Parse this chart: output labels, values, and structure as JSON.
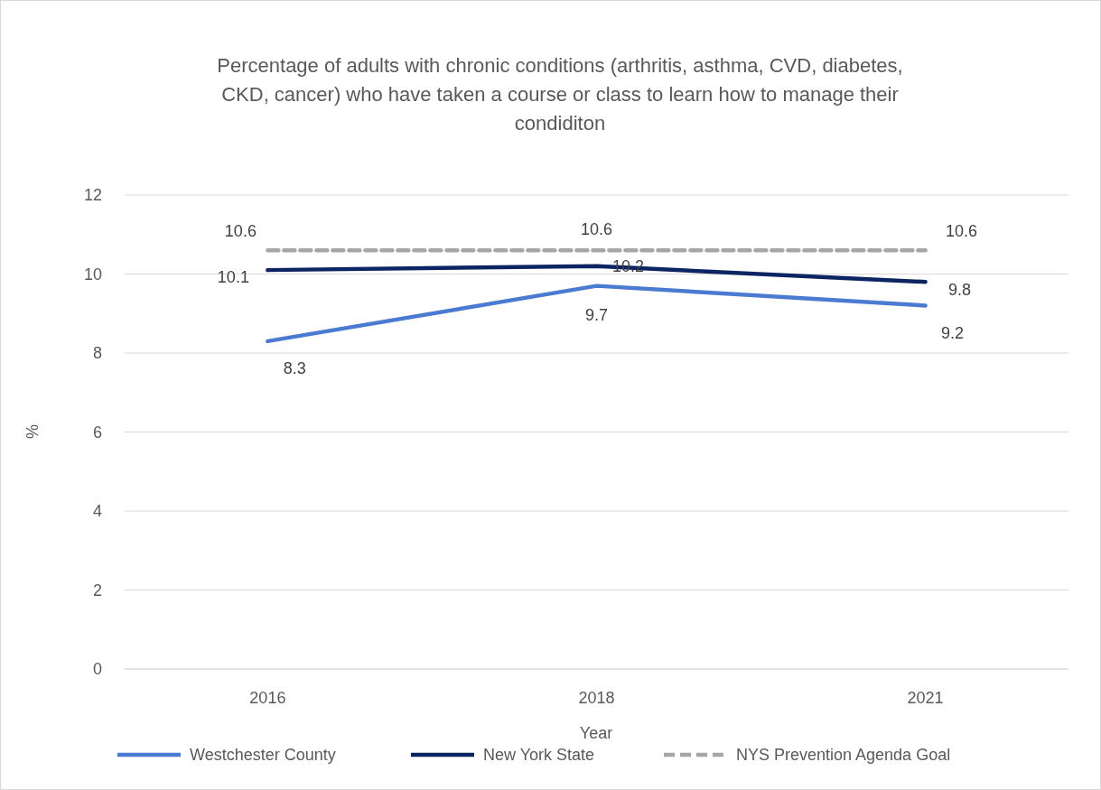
{
  "chart_data": {
    "type": "line",
    "title": "Percentage of adults with chronic conditions (arthritis, asthma, CVD, diabetes, CKD, cancer) who have taken a course or class to learn how to manage their condiditon",
    "xlabel": "Year",
    "ylabel": "%",
    "categories": [
      "2016",
      "2018",
      "2021"
    ],
    "series": [
      {
        "name": "Westchester County",
        "color": "#4a7bd0",
        "values": [
          8.3,
          9.7,
          9.2
        ]
      },
      {
        "name": "New York State",
        "color": "#0c2461",
        "values": [
          10.1,
          10.2,
          9.8
        ]
      },
      {
        "name": "NYS Prevention Agenda Goal",
        "color": "#a6a6a6",
        "values": [
          10.6,
          10.6,
          10.6
        ],
        "line_style": "dashed"
      }
    ],
    "ylim": [
      0,
      12
    ],
    "yticks": [
      0,
      2,
      4,
      6,
      8,
      10,
      12
    ],
    "grid": "y",
    "legend": "bottom",
    "data_labels": true,
    "marker": "none"
  }
}
